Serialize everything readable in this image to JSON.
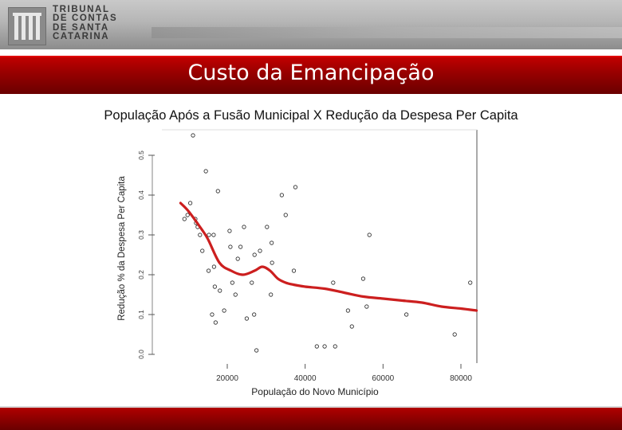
{
  "header": {
    "logo_lines": [
      "TRIBUNAL",
      "DE CONTAS",
      "DE SANTA",
      "CATARINA"
    ],
    "slide_title": "Custo da Emancipação"
  },
  "colors": {
    "title_bar": "#9a0000",
    "trend_line": "#cc1f1f",
    "points": "#222222"
  },
  "chart_data": {
    "type": "scatter",
    "title": "População Após a Fusão Municipal X Redução da Despesa Per Capita",
    "xlabel": "População do Novo Município",
    "ylabel": "Redução % da Despesa Per Capita",
    "xlim": [
      0,
      85000
    ],
    "ylim": [
      0,
      0.55
    ],
    "x_ticks": [
      20000,
      40000,
      60000,
      80000
    ],
    "x_tick_labels": [
      "20000",
      "40000",
      "60000",
      "80000"
    ],
    "y_ticks": [
      0.0,
      0.1,
      0.2,
      0.3,
      0.4,
      0.5
    ],
    "y_tick_labels": [
      "0.0",
      "0.1",
      "0.2",
      "0.3",
      "0.4",
      "0.5"
    ],
    "grid": false,
    "series": [
      {
        "kind": "points",
        "x": [
          9000,
          9800,
          10500,
          11200,
          12000,
          11800,
          12400,
          13000,
          13600,
          14500,
          15300,
          15200,
          16500,
          16100,
          16600,
          17000,
          17600,
          16800,
          18100,
          19200,
          20600,
          20800,
          21300,
          22100,
          22700,
          23400,
          24300,
          25000,
          26300,
          26900,
          27000,
          27500,
          28400,
          30200,
          31200,
          31400,
          31500,
          34000,
          35000,
          37100,
          37500,
          43000,
          45000,
          47200,
          47700,
          51000,
          52000,
          54900,
          55800,
          56500,
          66000,
          78400,
          82400
        ],
        "y": [
          0.34,
          0.35,
          0.38,
          0.55,
          0.33,
          0.34,
          0.32,
          0.3,
          0.26,
          0.46,
          0.3,
          0.21,
          0.3,
          0.1,
          0.22,
          0.08,
          0.41,
          0.17,
          0.16,
          0.11,
          0.31,
          0.27,
          0.18,
          0.15,
          0.24,
          0.27,
          0.32,
          0.09,
          0.18,
          0.1,
          0.25,
          0.01,
          0.26,
          0.32,
          0.15,
          0.28,
          0.23,
          0.4,
          0.35,
          0.21,
          0.42,
          0.02,
          0.02,
          0.18,
          0.02,
          0.11,
          0.07,
          0.19,
          0.12,
          0.3,
          0.1,
          0.05,
          0.18
        ]
      },
      {
        "kind": "smooth-line",
        "x": [
          8000,
          10000,
          13000,
          15000,
          18000,
          21000,
          24000,
          27000,
          29000,
          31000,
          33000,
          35000,
          37000,
          40000,
          45000,
          50000,
          55000,
          60000,
          65000,
          70000,
          75000,
          80000,
          84000
        ],
        "y": [
          0.38,
          0.36,
          0.32,
          0.29,
          0.23,
          0.21,
          0.2,
          0.21,
          0.22,
          0.21,
          0.19,
          0.18,
          0.175,
          0.17,
          0.165,
          0.155,
          0.145,
          0.14,
          0.135,
          0.13,
          0.12,
          0.115,
          0.11
        ]
      }
    ]
  }
}
